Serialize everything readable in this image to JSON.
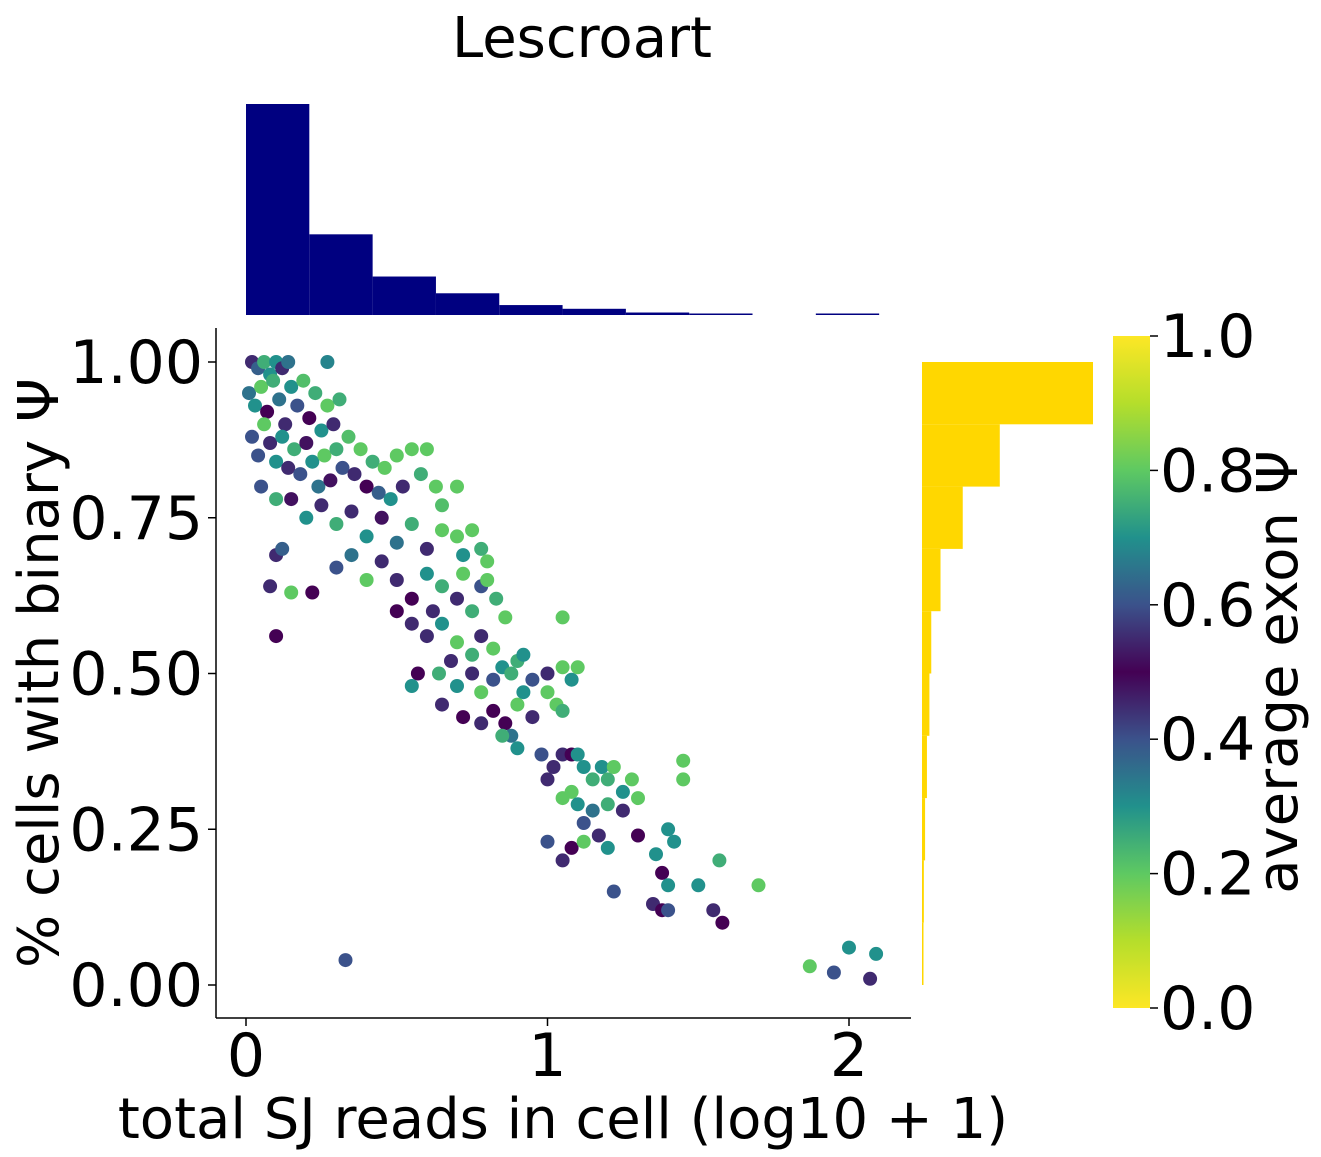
{
  "chart_data": {
    "type": "scatter",
    "title": "Lescroart",
    "xlabel": "total SJ reads in cell (log10 + 1)",
    "ylabel": "% cells with binary Ψ",
    "xlim": [
      -0.1,
      2.2
    ],
    "ylim": [
      -0.05,
      1.05
    ],
    "xticks": [
      "0",
      "1",
      "2"
    ],
    "xtick_values": [
      0,
      1,
      2
    ],
    "yticks": [
      "0.00",
      "0.25",
      "0.50",
      "0.75",
      "1.00"
    ],
    "ytick_values": [
      0,
      0.25,
      0.5,
      0.75,
      1.0
    ],
    "colorbar": {
      "label": "average exon Ψ",
      "ticks": [
        "0.0",
        "0.2",
        "0.4",
        "0.6",
        "0.8",
        "1.0"
      ],
      "tick_values": [
        0,
        0.2,
        0.4,
        0.6,
        0.8,
        1.0
      ],
      "range": [
        0,
        1
      ],
      "colormap": "viridis_r diverging (yellow-green-teal-blue-purple-dark-purple-blue-teal-green)"
    },
    "top_histogram": {
      "color": "#000080",
      "bin_edges": [
        0.0,
        0.21,
        0.42,
        0.63,
        0.84,
        1.05,
        1.26,
        1.47,
        1.68,
        1.89,
        2.1
      ],
      "counts": [
        340,
        130,
        62,
        35,
        16,
        10,
        4,
        2,
        0,
        1
      ]
    },
    "right_histogram": {
      "color": "#FFD700",
      "bin_edges": [
        0.0,
        0.1,
        0.2,
        0.3,
        0.4,
        0.5,
        0.6,
        0.7,
        0.8,
        0.9,
        1.0
      ],
      "counts": [
        2,
        3,
        5,
        8,
        12,
        15,
        30,
        66,
        126,
        277
      ]
    },
    "points": [
      [
        0.02,
        1.0,
        0.45
      ],
      [
        0.04,
        0.99,
        0.62
      ],
      [
        0.06,
        1.0,
        0.25
      ],
      [
        0.08,
        0.98,
        0.7
      ],
      [
        0.1,
        1.0,
        0.3
      ],
      [
        0.12,
        0.99,
        0.55
      ],
      [
        0.14,
        1.0,
        0.65
      ],
      [
        0.27,
        1.0,
        0.68
      ],
      [
        0.01,
        0.95,
        0.35
      ],
      [
        0.03,
        0.93,
        0.7
      ],
      [
        0.05,
        0.96,
        0.2
      ],
      [
        0.07,
        0.92,
        0.5
      ],
      [
        0.09,
        0.97,
        0.25
      ],
      [
        0.11,
        0.94,
        0.65
      ],
      [
        0.13,
        0.9,
        0.45
      ],
      [
        0.15,
        0.96,
        0.3
      ],
      [
        0.17,
        0.93,
        0.6
      ],
      [
        0.19,
        0.97,
        0.22
      ],
      [
        0.21,
        0.91,
        0.5
      ],
      [
        0.23,
        0.95,
        0.25
      ],
      [
        0.25,
        0.89,
        0.7
      ],
      [
        0.27,
        0.93,
        0.2
      ],
      [
        0.29,
        0.9,
        0.45
      ],
      [
        0.31,
        0.94,
        0.25
      ],
      [
        0.02,
        0.88,
        0.6
      ],
      [
        0.04,
        0.85,
        0.4
      ],
      [
        0.06,
        0.9,
        0.2
      ],
      [
        0.08,
        0.87,
        0.55
      ],
      [
        0.1,
        0.84,
        0.3
      ],
      [
        0.12,
        0.88,
        0.7
      ],
      [
        0.14,
        0.83,
        0.45
      ],
      [
        0.16,
        0.86,
        0.25
      ],
      [
        0.18,
        0.82,
        0.6
      ],
      [
        0.2,
        0.87,
        0.52
      ],
      [
        0.22,
        0.84,
        0.3
      ],
      [
        0.24,
        0.8,
        0.65
      ],
      [
        0.26,
        0.85,
        0.2
      ],
      [
        0.28,
        0.81,
        0.48
      ],
      [
        0.3,
        0.86,
        0.25
      ],
      [
        0.32,
        0.83,
        0.6
      ],
      [
        0.34,
        0.88,
        0.22
      ],
      [
        0.36,
        0.82,
        0.55
      ],
      [
        0.38,
        0.86,
        0.2
      ],
      [
        0.4,
        0.8,
        0.5
      ],
      [
        0.42,
        0.84,
        0.25
      ],
      [
        0.44,
        0.79,
        0.62
      ],
      [
        0.46,
        0.83,
        0.2
      ],
      [
        0.48,
        0.78,
        0.3
      ],
      [
        0.5,
        0.85,
        0.2
      ],
      [
        0.52,
        0.8,
        0.45
      ],
      [
        0.55,
        0.86,
        0.2
      ],
      [
        0.58,
        0.82,
        0.25
      ],
      [
        0.6,
        0.86,
        0.2
      ],
      [
        0.63,
        0.8,
        0.2
      ],
      [
        0.65,
        0.77,
        0.22
      ],
      [
        0.7,
        0.8,
        0.2
      ],
      [
        0.05,
        0.8,
        0.6
      ],
      [
        0.1,
        0.78,
        0.25
      ],
      [
        0.15,
        0.78,
        0.52
      ],
      [
        0.2,
        0.75,
        0.3
      ],
      [
        0.25,
        0.77,
        0.45
      ],
      [
        0.3,
        0.74,
        0.25
      ],
      [
        0.35,
        0.76,
        0.55
      ],
      [
        0.4,
        0.72,
        0.3
      ],
      [
        0.45,
        0.75,
        0.48
      ],
      [
        0.5,
        0.71,
        0.65
      ],
      [
        0.55,
        0.74,
        0.25
      ],
      [
        0.6,
        0.7,
        0.45
      ],
      [
        0.65,
        0.73,
        0.2
      ],
      [
        0.7,
        0.72,
        0.2
      ],
      [
        0.72,
        0.69,
        0.3
      ],
      [
        0.75,
        0.73,
        0.2
      ],
      [
        0.78,
        0.7,
        0.25
      ],
      [
        0.8,
        0.68,
        0.2
      ],
      [
        0.1,
        0.69,
        0.45
      ],
      [
        0.12,
        0.7,
        0.62
      ],
      [
        0.08,
        0.64,
        0.55
      ],
      [
        0.15,
        0.63,
        0.2
      ],
      [
        0.1,
        0.56,
        0.5
      ],
      [
        0.22,
        0.63,
        0.5
      ],
      [
        0.3,
        0.67,
        0.4
      ],
      [
        0.35,
        0.69,
        0.65
      ],
      [
        0.4,
        0.65,
        0.2
      ],
      [
        0.45,
        0.68,
        0.55
      ],
      [
        0.5,
        0.65,
        0.45
      ],
      [
        0.55,
        0.62,
        0.5
      ],
      [
        0.6,
        0.66,
        0.3
      ],
      [
        0.62,
        0.6,
        0.45
      ],
      [
        0.65,
        0.64,
        0.25
      ],
      [
        0.7,
        0.62,
        0.55
      ],
      [
        0.72,
        0.66,
        0.2
      ],
      [
        0.75,
        0.6,
        0.25
      ],
      [
        0.78,
        0.64,
        0.4
      ],
      [
        0.8,
        0.65,
        0.2
      ],
      [
        0.83,
        0.62,
        0.25
      ],
      [
        0.86,
        0.59,
        0.2
      ],
      [
        0.5,
        0.6,
        0.5
      ],
      [
        0.55,
        0.58,
        0.45
      ],
      [
        0.6,
        0.56,
        0.55
      ],
      [
        0.65,
        0.58,
        0.3
      ],
      [
        0.7,
        0.55,
        0.2
      ],
      [
        0.75,
        0.53,
        0.25
      ],
      [
        0.78,
        0.56,
        0.55
      ],
      [
        0.82,
        0.54,
        0.2
      ],
      [
        0.64,
        0.5,
        0.25
      ],
      [
        0.68,
        0.52,
        0.45
      ],
      [
        0.7,
        0.48,
        0.3
      ],
      [
        0.75,
        0.5,
        0.55
      ],
      [
        0.78,
        0.47,
        0.2
      ],
      [
        0.82,
        0.49,
        0.4
      ],
      [
        0.85,
        0.51,
        0.3
      ],
      [
        0.88,
        0.5,
        0.25
      ],
      [
        0.57,
        0.5,
        0.5
      ],
      [
        0.55,
        0.48,
        0.3
      ],
      [
        0.65,
        0.45,
        0.45
      ],
      [
        0.72,
        0.43,
        0.5
      ],
      [
        0.78,
        0.42,
        0.55
      ],
      [
        0.82,
        0.44,
        0.5
      ],
      [
        0.86,
        0.42,
        0.5
      ],
      [
        0.9,
        0.45,
        0.2
      ],
      [
        0.92,
        0.47,
        0.3
      ],
      [
        0.95,
        0.43,
        0.45
      ],
      [
        1.0,
        0.47,
        0.2
      ],
      [
        1.03,
        0.45,
        0.2
      ],
      [
        1.05,
        0.44,
        0.25
      ],
      [
        1.08,
        0.49,
        0.3
      ],
      [
        1.05,
        0.51,
        0.2
      ],
      [
        1.1,
        0.51,
        0.2
      ],
      [
        1.0,
        0.5,
        0.55
      ],
      [
        0.95,
        0.49,
        0.4
      ],
      [
        0.9,
        0.52,
        0.25
      ],
      [
        1.05,
        0.59,
        0.2
      ],
      [
        0.92,
        0.53,
        0.3
      ],
      [
        0.88,
        0.4,
        0.35
      ],
      [
        0.85,
        0.4,
        0.25
      ],
      [
        0.9,
        0.38,
        0.3
      ],
      [
        0.98,
        0.37,
        0.4
      ],
      [
        1.02,
        0.35,
        0.45
      ],
      [
        1.05,
        0.37,
        0.55
      ],
      [
        1.08,
        0.37,
        0.5
      ],
      [
        1.1,
        0.37,
        0.3
      ],
      [
        1.12,
        0.35,
        0.3
      ],
      [
        1.15,
        0.33,
        0.25
      ],
      [
        1.18,
        0.35,
        0.3
      ],
      [
        1.2,
        0.33,
        0.25
      ],
      [
        1.22,
        0.35,
        0.2
      ],
      [
        1.25,
        0.31,
        0.3
      ],
      [
        1.28,
        0.33,
        0.2
      ],
      [
        1.0,
        0.33,
        0.45
      ],
      [
        1.05,
        0.3,
        0.2
      ],
      [
        1.08,
        0.31,
        0.2
      ],
      [
        1.1,
        0.29,
        0.3
      ],
      [
        1.15,
        0.28,
        0.35
      ],
      [
        1.2,
        0.29,
        0.25
      ],
      [
        1.25,
        0.28,
        0.45
      ],
      [
        1.3,
        0.3,
        0.2
      ],
      [
        1.45,
        0.36,
        0.2
      ],
      [
        1.45,
        0.33,
        0.2
      ],
      [
        1.12,
        0.26,
        0.4
      ],
      [
        1.17,
        0.24,
        0.45
      ],
      [
        1.0,
        0.23,
        0.4
      ],
      [
        1.05,
        0.2,
        0.45
      ],
      [
        1.08,
        0.22,
        0.5
      ],
      [
        1.12,
        0.23,
        0.2
      ],
      [
        1.2,
        0.22,
        0.3
      ],
      [
        1.3,
        0.24,
        0.5
      ],
      [
        1.4,
        0.25,
        0.3
      ],
      [
        1.42,
        0.23,
        0.3
      ],
      [
        1.36,
        0.21,
        0.3
      ],
      [
        1.38,
        0.18,
        0.5
      ],
      [
        1.4,
        0.16,
        0.3
      ],
      [
        1.22,
        0.15,
        0.4
      ],
      [
        1.35,
        0.13,
        0.45
      ],
      [
        1.38,
        0.12,
        0.5
      ],
      [
        1.4,
        0.12,
        0.4
      ],
      [
        1.5,
        0.16,
        0.3
      ],
      [
        1.55,
        0.12,
        0.45
      ],
      [
        1.58,
        0.1,
        0.5
      ],
      [
        1.57,
        0.2,
        0.25
      ],
      [
        1.7,
        0.16,
        0.2
      ],
      [
        0.33,
        0.04,
        0.4
      ],
      [
        1.87,
        0.03,
        0.2
      ],
      [
        1.95,
        0.02,
        0.4
      ],
      [
        2.0,
        0.06,
        0.3
      ],
      [
        2.07,
        0.01,
        0.45
      ],
      [
        2.09,
        0.05,
        0.3
      ]
    ]
  }
}
